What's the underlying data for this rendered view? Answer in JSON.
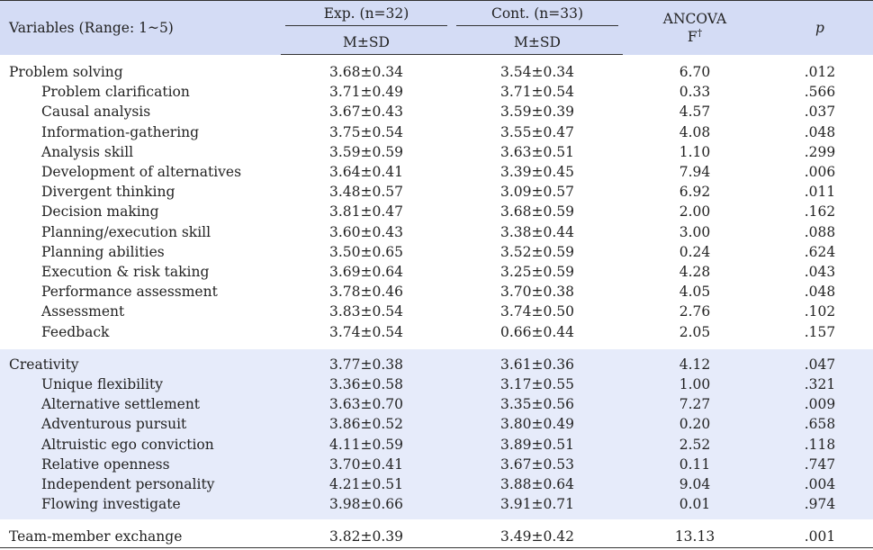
{
  "header": {
    "variables": "Variables (Range: 1~5)",
    "exp": "Exp. (n=32)",
    "cont": "Cont. (n=33)",
    "ancova": "ANCOVA",
    "f": "F",
    "dagger": "†",
    "p": "p",
    "msd_exp": "M±SD",
    "msd_cont": "M±SD"
  },
  "problem_solving": [
    {
      "label": "Problem solving",
      "exp": "3.68±0.34",
      "cont": "3.54±0.34",
      "f": "6.70",
      "p": ".012",
      "level": 0
    },
    {
      "label": "Problem clarification",
      "exp": "3.71±0.49",
      "cont": "3.71±0.54",
      "f": "0.33",
      "p": ".566",
      "level": 1
    },
    {
      "label": "Causal analysis",
      "exp": "3.67±0.43",
      "cont": "3.59±0.39",
      "f": "4.57",
      "p": ".037",
      "level": 1
    },
    {
      "label": "Information-gathering",
      "exp": "3.75±0.54",
      "cont": "3.55±0.47",
      "f": "4.08",
      "p": ".048",
      "level": 1
    },
    {
      "label": "Analysis skill",
      "exp": "3.59±0.59",
      "cont": "3.63±0.51",
      "f": "1.10",
      "p": ".299",
      "level": 1
    },
    {
      "label": "Development of alternatives",
      "exp": "3.64±0.41",
      "cont": "3.39±0.45",
      "f": "7.94",
      "p": ".006",
      "level": 1
    },
    {
      "label": "Divergent thinking",
      "exp": "3.48±0.57",
      "cont": "3.09±0.57",
      "f": "6.92",
      "p": ".011",
      "level": 1
    },
    {
      "label": "Decision making",
      "exp": "3.81±0.47",
      "cont": "3.68±0.59",
      "f": "2.00",
      "p": ".162",
      "level": 1
    },
    {
      "label": "Planning/execution skill",
      "exp": "3.60±0.43",
      "cont": "3.38±0.44",
      "f": "3.00",
      "p": ".088",
      "level": 1
    },
    {
      "label": "Planning abilities",
      "exp": "3.50±0.65",
      "cont": "3.52±0.59",
      "f": "0.24",
      "p": ".624",
      "level": 1
    },
    {
      "label": "Execution & risk taking",
      "exp": "3.69±0.64",
      "cont": "3.25±0.59",
      "f": "4.28",
      "p": ".043",
      "level": 1
    },
    {
      "label": "Performance assessment",
      "exp": "3.78±0.46",
      "cont": "3.70±0.38",
      "f": "4.05",
      "p": ".048",
      "level": 1
    },
    {
      "label": "Assessment",
      "exp": "3.83±0.54",
      "cont": "3.74±0.50",
      "f": "2.76",
      "p": ".102",
      "level": 1
    },
    {
      "label": "Feedback",
      "exp": "3.74±0.54",
      "cont": "0.66±0.44",
      "f": "2.05",
      "p": ".157",
      "level": 1
    }
  ],
  "creativity": [
    {
      "label": "Creativity",
      "exp": "3.77±0.38",
      "cont": "3.61±0.36",
      "f": "4.12",
      "p": ".047",
      "level": 0
    },
    {
      "label": "Unique flexibility",
      "exp": "3.36±0.58",
      "cont": "3.17±0.55",
      "f": "1.00",
      "p": ".321",
      "level": 1
    },
    {
      "label": "Alternative settlement",
      "exp": "3.63±0.70",
      "cont": "3.35±0.56",
      "f": "7.27",
      "p": ".009",
      "level": 1
    },
    {
      "label": "Adventurous pursuit",
      "exp": "3.86±0.52",
      "cont": "3.80±0.49",
      "f": "0.20",
      "p": ".658",
      "level": 1
    },
    {
      "label": "Altruistic ego conviction",
      "exp": "4.11±0.59",
      "cont": "3.89±0.51",
      "f": "2.52",
      "p": ".118",
      "level": 1
    },
    {
      "label": "Relative openness",
      "exp": "3.70±0.41",
      "cont": "3.67±0.53",
      "f": "0.11",
      "p": ".747",
      "level": 1
    },
    {
      "label": "Independent personality",
      "exp": "4.21±0.51",
      "cont": "3.88±0.64",
      "f": "9.04",
      "p": ".004",
      "level": 1
    },
    {
      "label": "Flowing investigate",
      "exp": "3.98±0.66",
      "cont": "3.91±0.71",
      "f": "0.01",
      "p": ".974",
      "level": 1
    }
  ],
  "team": [
    {
      "label": "Team-member exchange",
      "exp": "3.82±0.39",
      "cont": "3.49±0.42",
      "f": "13.13",
      "p": ".001",
      "level": 0
    }
  ]
}
